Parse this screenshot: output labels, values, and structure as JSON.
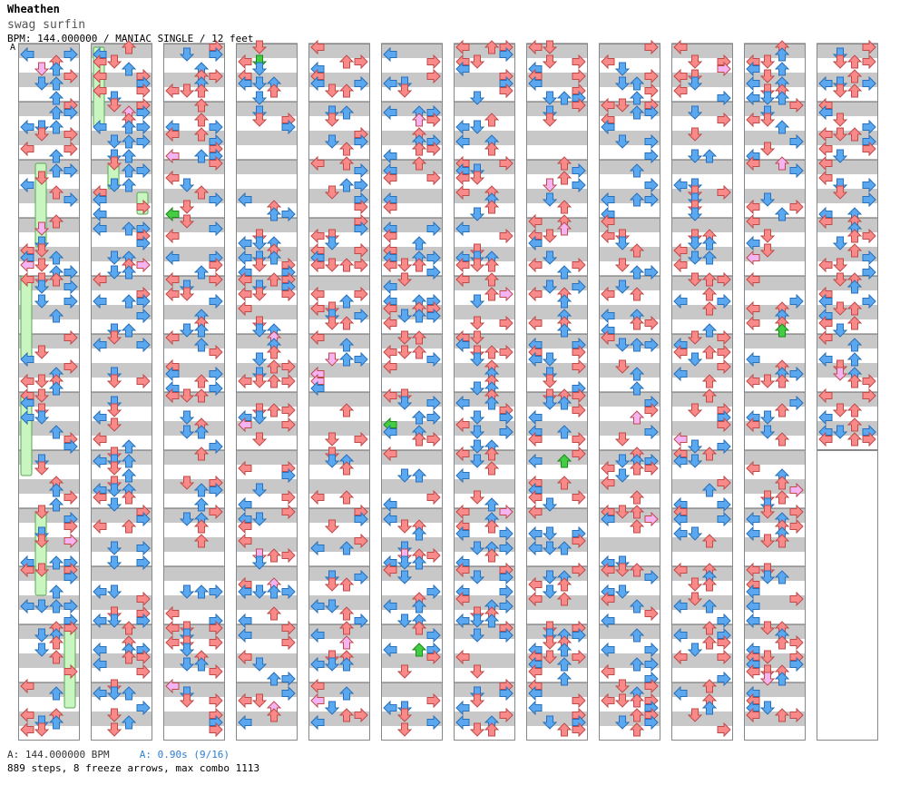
{
  "header": {
    "author": "Wheathen",
    "song": "swag surfin",
    "info": "BPM: 144.000000 / MANIAC SINGLE / 12 feet",
    "marker": "A"
  },
  "footer": {
    "bpm_label": "A: 144.000000 BPM",
    "offset_label": "A: 0.90s (9/16)",
    "stats": "889 steps, 8 freeze arrows, max combo 1113"
  },
  "chart_data": {
    "type": "step-chart",
    "columns": 12,
    "measures_per_column": 12,
    "total_measures": 139,
    "steps": 889,
    "freeze_arrows": 8,
    "max_combo": 1113,
    "bpm": 144.0,
    "lanes": [
      "left",
      "down",
      "up",
      "right"
    ],
    "colors": {
      "quarter_note": "#f88a8a",
      "eighth_note": "#5aa8f0",
      "sixteenth_note": "#f4b4f4",
      "special_note": "#44cc44",
      "freeze": "#c8f5c0",
      "stripe": "#c8c8c8",
      "border": "#888888"
    }
  }
}
